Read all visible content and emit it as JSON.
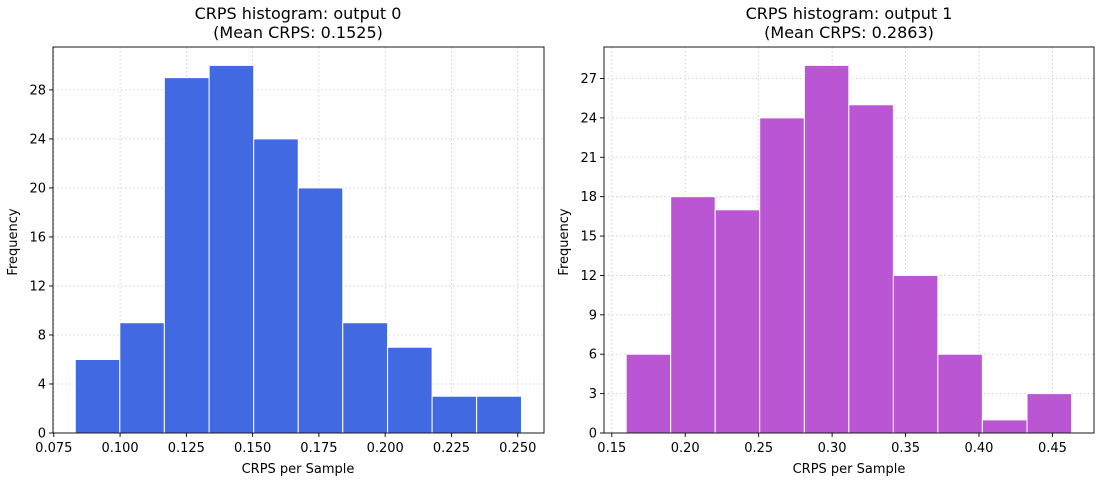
{
  "chart_data": [
    {
      "type": "bar",
      "title": "CRPS histogram: output 0",
      "subtitle": "(Mean CRPS: 0.1525)",
      "xlabel": "CRPS per Sample",
      "ylabel": "Frequency",
      "color": "#4169e1",
      "grid": true,
      "xlim": [
        0.0747,
        0.2599
      ],
      "ylim": [
        0,
        31.5
      ],
      "xticks": [
        0.075,
        0.1,
        0.125,
        0.15,
        0.175,
        0.2,
        0.225,
        0.25
      ],
      "xtick_labels": [
        "0.075",
        "0.100",
        "0.125",
        "0.150",
        "0.175",
        "0.200",
        "0.225",
        "0.250"
      ],
      "yticks": [
        0,
        4,
        8,
        12,
        16,
        20,
        24,
        28
      ],
      "yticks_labels": [
        "0",
        "4",
        "8",
        "12",
        "16",
        "20",
        "24",
        "28"
      ],
      "bin_edges": [
        0.0831,
        0.0999,
        0.1167,
        0.1336,
        0.1504,
        0.1672,
        0.184,
        0.2009,
        0.2177,
        0.2345,
        0.2514
      ],
      "values": [
        6,
        9,
        29,
        30,
        24,
        20,
        9,
        7,
        3,
        3
      ]
    },
    {
      "type": "bar",
      "title": "CRPS histogram: output 1",
      "subtitle": "(Mean CRPS: 0.2863)",
      "xlabel": "CRPS per Sample",
      "ylabel": "Frequency",
      "color": "#ba55d3",
      "grid": true,
      "xlim": [
        0.1447,
        0.4783
      ],
      "ylim": [
        0,
        29.4
      ],
      "xticks": [
        0.15,
        0.2,
        0.25,
        0.3,
        0.35,
        0.4,
        0.45
      ],
      "xtick_labels": [
        "0.15",
        "0.20",
        "0.25",
        "0.30",
        "0.35",
        "0.40",
        "0.45"
      ],
      "yticks": [
        0,
        3,
        6,
        9,
        12,
        15,
        18,
        21,
        24,
        27
      ],
      "yticks_labels": [
        "0",
        "3",
        "6",
        "9",
        "12",
        "15",
        "18",
        "21",
        "24",
        "27"
      ],
      "bin_edges": [
        0.1598,
        0.1901,
        0.2204,
        0.2507,
        0.2811,
        0.3114,
        0.3417,
        0.372,
        0.4023,
        0.4327,
        0.463
      ],
      "values": [
        6,
        18,
        17,
        24,
        28,
        25,
        12,
        6,
        1,
        3
      ]
    }
  ]
}
